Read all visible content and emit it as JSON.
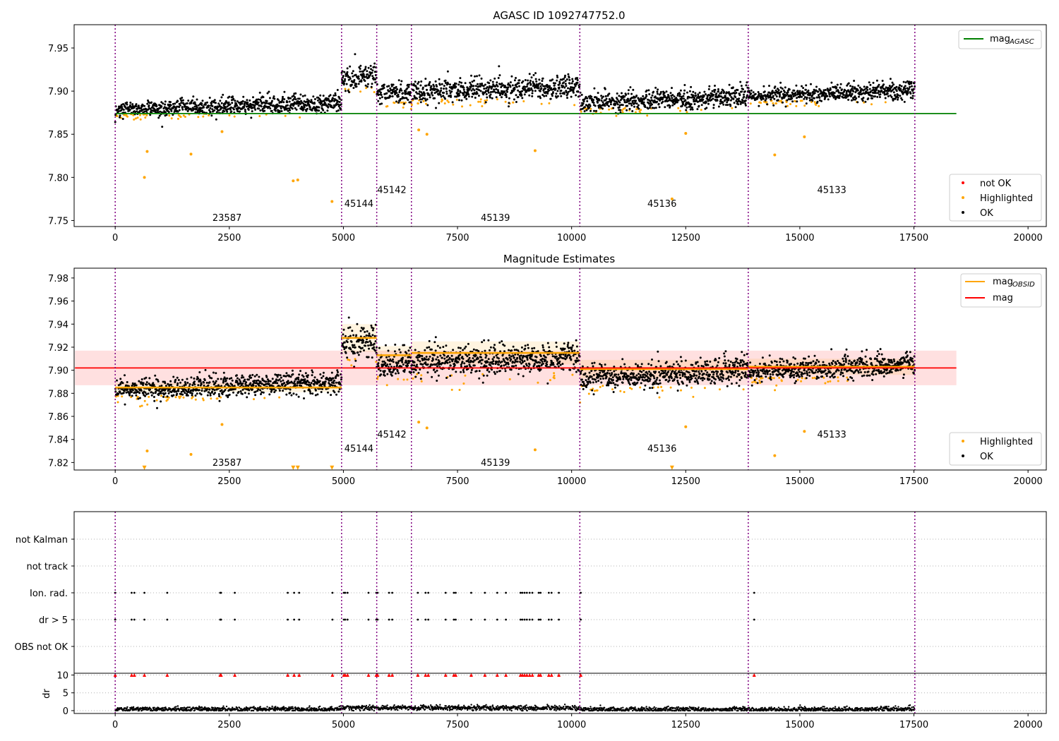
{
  "figure": {
    "title": "AGASC ID 1092747752.0",
    "subtitle": "Magnitude Estimates"
  },
  "chart_data": [
    {
      "type": "scatter",
      "panel": "top",
      "title": "AGASC ID 1092747752.0",
      "xlim": [
        -900,
        20400
      ],
      "ylim": [
        7.743,
        7.977
      ],
      "xticks": [
        0,
        2500,
        5000,
        7500,
        10000,
        12500,
        15000,
        17500,
        20000
      ],
      "yticks": [
        7.75,
        7.8,
        7.85,
        7.9,
        7.95
      ],
      "ytick_labels": [
        "7.75",
        "7.80",
        "7.85",
        "7.90",
        "7.95"
      ],
      "obs_boundaries": [
        0,
        4960,
        5730,
        6490,
        10180,
        13870,
        17520
      ],
      "obs_labels": [
        {
          "text": "23587",
          "x": 2450,
          "y": 7.753
        },
        {
          "text": "45144",
          "x": 5340,
          "y": 7.769
        },
        {
          "text": "45142",
          "x": 6060,
          "y": 7.785
        },
        {
          "text": "45139",
          "x": 8330,
          "y": 7.753
        },
        {
          "text": "45136",
          "x": 11980,
          "y": 7.769
        },
        {
          "text": "45133",
          "x": 15700,
          "y": 7.785
        }
      ],
      "segments": [
        {
          "x0": 0,
          "x1": 4960,
          "mean": 7.882,
          "drift": 0.008,
          "noise": 0.005
        },
        {
          "x0": 4960,
          "x1": 5730,
          "mean": 7.917,
          "drift": 0.005,
          "noise": 0.008
        },
        {
          "x0": 5730,
          "x1": 6490,
          "mean": 7.898,
          "drift": 0.0,
          "noise": 0.007
        },
        {
          "x0": 6490,
          "x1": 10180,
          "mean": 7.902,
          "drift": 0.006,
          "noise": 0.007
        },
        {
          "x0": 10180,
          "x1": 13870,
          "mean": 7.89,
          "drift": 0.01,
          "noise": 0.006
        },
        {
          "x0": 13870,
          "x1": 17520,
          "mean": 7.897,
          "drift": 0.008,
          "noise": 0.005
        }
      ],
      "highlighted_outliers": [
        {
          "x": 640,
          "y": 7.8
        },
        {
          "x": 700,
          "y": 7.83
        },
        {
          "x": 1660,
          "y": 7.827
        },
        {
          "x": 2340,
          "y": 7.853
        },
        {
          "x": 3900,
          "y": 7.796
        },
        {
          "x": 4000,
          "y": 7.797
        },
        {
          "x": 4750,
          "y": 7.772
        },
        {
          "x": 6650,
          "y": 7.855
        },
        {
          "x": 6830,
          "y": 7.85
        },
        {
          "x": 9200,
          "y": 7.831
        },
        {
          "x": 12200,
          "y": 7.775
        },
        {
          "x": 12500,
          "y": 7.851
        },
        {
          "x": 14450,
          "y": 7.826
        },
        {
          "x": 15100,
          "y": 7.847
        }
      ],
      "reference_lines": [
        {
          "name": "mag",
          "sub": "AGASC",
          "y": 7.874,
          "color": "#008000"
        }
      ],
      "legend_lines_loc": "upper right",
      "legend_points_loc": "lower right",
      "legend_points": [
        {
          "label": "not OK",
          "color": "#ff0000"
        },
        {
          "label": "Highlighted",
          "color": "#ffa500"
        },
        {
          "label": "OK",
          "color": "#000000"
        }
      ]
    },
    {
      "type": "scatter",
      "panel": "middle",
      "title": "Magnitude Estimates",
      "xlim": [
        -900,
        20400
      ],
      "ylim": [
        7.8135,
        7.9885
      ],
      "xticks": [
        0,
        2500,
        5000,
        7500,
        10000,
        12500,
        15000,
        17500,
        20000
      ],
      "yticks": [
        7.82,
        7.84,
        7.86,
        7.88,
        7.9,
        7.92,
        7.94,
        7.96,
        7.98
      ],
      "ytick_labels": [
        "7.82",
        "7.84",
        "7.86",
        "7.88",
        "7.90",
        "7.92",
        "7.94",
        "7.96",
        "7.98"
      ],
      "obs_boundaries": [
        0,
        4960,
        5730,
        6490,
        10180,
        13870,
        17520
      ],
      "obs_labels": [
        {
          "text": "23587",
          "x": 2450,
          "y": 7.8195
        },
        {
          "text": "45144",
          "x": 5340,
          "y": 7.8318
        },
        {
          "text": "45142",
          "x": 6060,
          "y": 7.844
        },
        {
          "text": "45139",
          "x": 8330,
          "y": 7.8195
        },
        {
          "text": "45136",
          "x": 11980,
          "y": 7.8318
        },
        {
          "text": "45133",
          "x": 15700,
          "y": 7.844
        }
      ],
      "mag_obsid": [
        {
          "x0": 0,
          "x1": 4960,
          "y": 7.885,
          "band": 0.004
        },
        {
          "x0": 4960,
          "x1": 5730,
          "y": 7.928,
          "band": 0.012
        },
        {
          "x0": 5730,
          "x1": 6490,
          "y": 7.913,
          "band": 0.008
        },
        {
          "x0": 6490,
          "x1": 10180,
          "y": 7.915,
          "band": 0.01
        },
        {
          "x0": 10180,
          "x1": 13870,
          "y": 7.901,
          "band": 0.008
        },
        {
          "x0": 13870,
          "x1": 17520,
          "y": 7.903,
          "band": 0.007
        }
      ],
      "mag": {
        "y": 7.902,
        "band": [
          7.887,
          7.917
        ],
        "xmax": 18430
      },
      "triangle_markers": [
        {
          "x": 640,
          "y": 7.8155
        },
        {
          "x": 3900,
          "y": 7.8155
        },
        {
          "x": 4000,
          "y": 7.8155
        },
        {
          "x": 4750,
          "y": 7.8155
        },
        {
          "x": 12200,
          "y": 7.8155
        }
      ],
      "highlighted_outliers": [
        {
          "x": 700,
          "y": 7.83
        },
        {
          "x": 1660,
          "y": 7.827
        },
        {
          "x": 2340,
          "y": 7.853
        },
        {
          "x": 6650,
          "y": 7.855
        },
        {
          "x": 6830,
          "y": 7.85
        },
        {
          "x": 9200,
          "y": 7.831
        },
        {
          "x": 12500,
          "y": 7.851
        },
        {
          "x": 14450,
          "y": 7.826
        },
        {
          "x": 15100,
          "y": 7.847
        }
      ],
      "legend_lines": [
        {
          "name": "mag",
          "sub": "OBSID",
          "color": "#ffa500"
        },
        {
          "name": "mag",
          "sub": "",
          "color": "#ff0000"
        }
      ],
      "legend_lines_loc": "upper right",
      "legend_points_loc": "lower right",
      "legend_points": [
        {
          "label": "Highlighted",
          "color": "#ffa500"
        },
        {
          "label": "OK",
          "color": "#000000"
        }
      ]
    },
    {
      "type": "scatter",
      "panel": "flags",
      "xlim": [
        -900,
        20400
      ],
      "categories": [
        "not Kalman",
        "not track",
        "Ion. rad.",
        "dr > 5",
        "OBS not OK"
      ],
      "obs_boundaries": [
        0,
        4960,
        5730,
        6490,
        10180,
        13870,
        17520
      ],
      "flag_times": [
        0,
        360,
        420,
        640,
        1140,
        2300,
        2320,
        2620,
        3780,
        3920,
        4030,
        4760,
        5010,
        5040,
        5090,
        5550,
        5720,
        5750,
        6000,
        6070,
        6630,
        6800,
        6860,
        7240,
        7420,
        7460,
        7800,
        8100,
        8370,
        8560,
        8880,
        8920,
        8970,
        9020,
        9080,
        9140,
        9280,
        9320,
        9500,
        9560,
        9720,
        10200,
        14000
      ],
      "flag_rows": [
        "Ion. rad.",
        "dr > 5"
      ]
    },
    {
      "type": "scatter",
      "panel": "dr",
      "ylabel": "dr",
      "xlim": [
        -900,
        20400
      ],
      "ylim": [
        -0.8,
        10.5
      ],
      "yticks": [
        0,
        5,
        10
      ],
      "ytick_labels": [
        "0",
        "5",
        "10"
      ],
      "xticks": [
        0,
        2500,
        5000,
        7500,
        10000,
        12500,
        15000,
        17500,
        20000
      ],
      "xtick_labels": [
        "0",
        "2500",
        "5000",
        "7500",
        "10000",
        "12500",
        "15000",
        "17500",
        "20000"
      ],
      "obs_boundaries": [
        0,
        4960,
        5730,
        6490,
        10180,
        13870,
        17520
      ],
      "dr_clipped_value": 10,
      "dr_clipped_color": "#ff0000",
      "dr_typical": [
        {
          "x0": 0,
          "x1": 4960,
          "mean": 0.4
        },
        {
          "x0": 4960,
          "x1": 10180,
          "mean": 0.75
        },
        {
          "x0": 10180,
          "x1": 17520,
          "mean": 0.35
        }
      ]
    }
  ]
}
